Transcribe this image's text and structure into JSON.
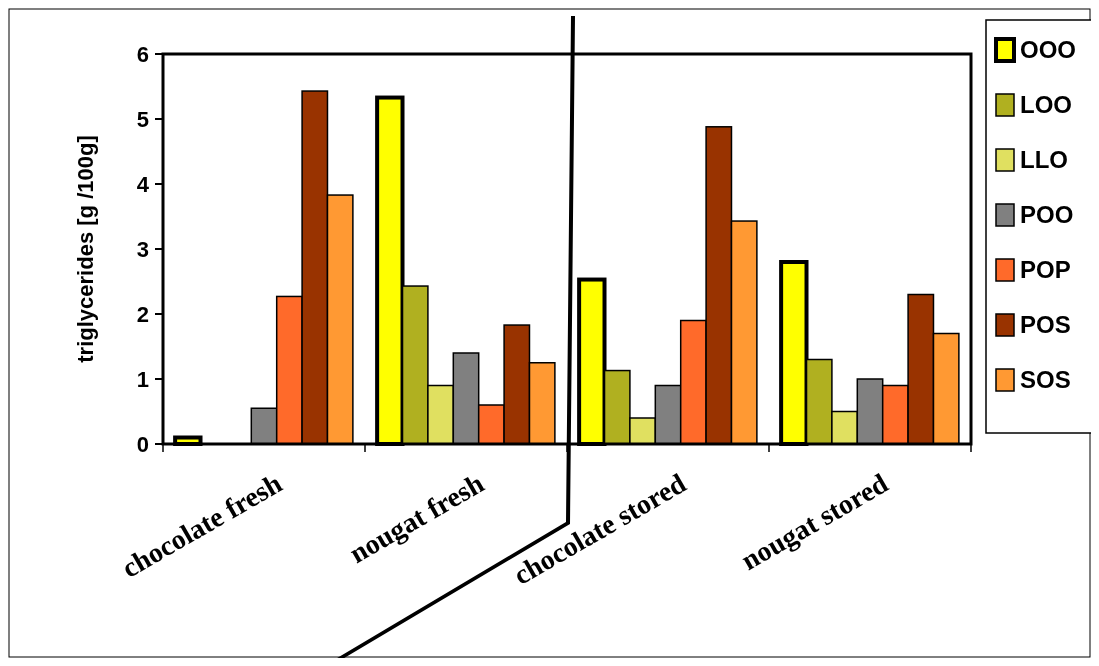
{
  "chart_data": {
    "type": "bar",
    "ylabel": "triglycerides [g /100g]",
    "categories": [
      "chocolate fresh",
      "nougat fresh",
      "chocolate stored",
      "nougat stored"
    ],
    "ylim": [
      0,
      6
    ],
    "yticks": [
      0,
      1,
      2,
      3,
      4,
      5,
      6
    ],
    "legend": "right",
    "grid": false,
    "series": [
      {
        "name": "OOO",
        "color": "#ffff00",
        "values": [
          0.1,
          5.33,
          2.53,
          2.8
        ]
      },
      {
        "name": "LOO",
        "color": "#b0b020",
        "values": [
          0,
          2.43,
          1.13,
          1.3
        ]
      },
      {
        "name": "LLO",
        "color": "#e0e060",
        "values": [
          0,
          0.9,
          0.4,
          0.5
        ]
      },
      {
        "name": "POO",
        "color": "#808080",
        "values": [
          0.55,
          1.4,
          0.9,
          1.0
        ]
      },
      {
        "name": "POP",
        "color": "#ff6a2a",
        "values": [
          2.27,
          0.6,
          1.9,
          0.9
        ]
      },
      {
        "name": "POS",
        "color": "#993300",
        "values": [
          5.43,
          1.83,
          4.88,
          2.3
        ]
      },
      {
        "name": "SOS",
        "color": "#ff9933",
        "values": [
          3.83,
          1.25,
          3.43,
          1.7
        ]
      }
    ]
  }
}
